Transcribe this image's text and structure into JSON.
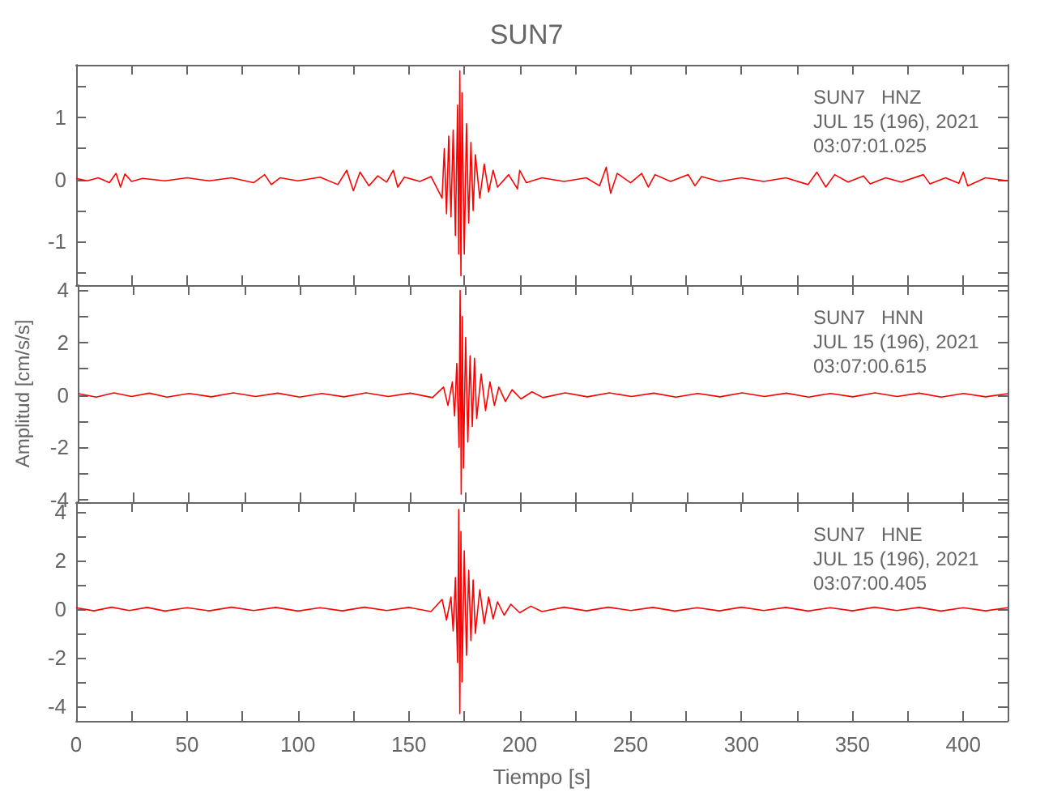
{
  "chart_data": [
    {
      "type": "line",
      "title": "SUN7",
      "annotations": [
        "SUN7   HNZ",
        "JUL 15 (196), 2021",
        "03:07:01.025"
      ],
      "grid": false,
      "tick_labels": "y",
      "xlim": [
        0,
        420
      ],
      "xticks": [
        0,
        {
          "value": 25,
          "label": null
        },
        50,
        {
          "value": 75,
          "label": null
        },
        100,
        {
          "value": 125,
          "label": null
        },
        150,
        {
          "value": 175,
          "label": null
        },
        200,
        {
          "value": 225,
          "label": null
        },
        250,
        {
          "value": 275,
          "label": null
        },
        300,
        {
          "value": 325,
          "label": null
        },
        350,
        {
          "value": 375,
          "label": null
        },
        400
      ],
      "ylim": [
        -1.7,
        1.85
      ],
      "yticks": [
        {
          "value": -1.5,
          "label": null
        },
        -1,
        {
          "value": -0.5,
          "label": null
        },
        0,
        {
          "value": 0.5,
          "label": null
        },
        1,
        {
          "value": 1.5,
          "label": null
        }
      ],
      "series": [
        {
          "color": "#ff0000",
          "x": [
            0,
            5,
            10,
            15,
            18,
            20,
            22,
            25,
            30,
            40,
            50,
            60,
            70,
            80,
            85,
            88,
            92,
            100,
            110,
            118,
            122,
            125,
            128,
            132,
            136,
            140,
            143,
            145,
            148,
            155,
            160,
            165,
            166,
            167,
            168,
            169,
            170,
            171,
            172,
            172.5,
            173,
            173.5,
            174,
            175,
            176,
            177,
            178,
            179,
            180,
            182,
            184,
            186,
            188,
            190,
            195,
            199,
            200,
            203,
            210,
            220,
            230,
            236,
            239,
            241,
            244,
            250,
            255,
            258,
            261,
            268,
            276,
            279,
            282,
            290,
            300,
            310,
            320,
            330,
            334,
            338,
            342,
            348,
            355,
            358,
            365,
            372,
            382,
            385,
            392,
            398,
            400,
            402,
            410,
            420
          ],
          "values": [
            0.02,
            -0.02,
            0.03,
            -0.05,
            0.1,
            -0.12,
            0.09,
            -0.03,
            0.02,
            -0.02,
            0.03,
            -0.02,
            0.03,
            -0.05,
            0.08,
            -0.08,
            0.03,
            -0.02,
            0.04,
            -0.08,
            0.15,
            -0.18,
            0.12,
            -0.1,
            0.06,
            -0.04,
            0.15,
            -0.12,
            0.04,
            -0.03,
            0.05,
            -0.3,
            0.5,
            -0.55,
            0.7,
            -0.6,
            0.8,
            -0.9,
            1.2,
            -1.2,
            1.75,
            -1.55,
            1.4,
            -1.2,
            0.9,
            -0.7,
            0.6,
            -0.5,
            0.4,
            -0.3,
            0.25,
            -0.2,
            0.15,
            -0.12,
            0.08,
            -0.15,
            0.15,
            -0.05,
            0.03,
            -0.03,
            0.03,
            -0.1,
            0.2,
            -0.22,
            0.1,
            -0.05,
            0.1,
            -0.12,
            0.08,
            -0.03,
            0.08,
            -0.1,
            0.05,
            -0.03,
            0.03,
            -0.03,
            0.03,
            -0.08,
            0.12,
            -0.12,
            0.08,
            -0.04,
            0.06,
            -0.07,
            0.03,
            -0.04,
            0.08,
            -0.07,
            0.03,
            -0.06,
            0.12,
            -0.1,
            0.03,
            -0.02
          ]
        }
      ]
    },
    {
      "type": "line",
      "ylabel": "Amplitud [cm/s/s]",
      "annotations": [
        "SUN7   HNN",
        "JUL 15 (196), 2021",
        "03:07:00.615"
      ],
      "grid": false,
      "tick_labels": "y",
      "xlim": [
        0,
        420
      ],
      "xticks": [
        0,
        {
          "value": 25,
          "label": null
        },
        50,
        {
          "value": 75,
          "label": null
        },
        100,
        {
          "value": 125,
          "label": null
        },
        150,
        {
          "value": 175,
          "label": null
        },
        200,
        {
          "value": 225,
          "label": null
        },
        250,
        {
          "value": 275,
          "label": null
        },
        300,
        {
          "value": 325,
          "label": null
        },
        350,
        {
          "value": 375,
          "label": null
        },
        400
      ],
      "ylim": [
        -4.1,
        4.2
      ],
      "yticks": [
        -4,
        {
          "value": -3,
          "label": null
        },
        -2,
        {
          "value": -1,
          "label": null
        },
        0,
        {
          "value": 1,
          "label": null
        },
        2,
        {
          "value": 3,
          "label": null
        },
        4
      ],
      "series": [
        {
          "color": "#ff0000",
          "x": [
            0,
            8,
            16,
            24,
            32,
            40,
            50,
            60,
            70,
            80,
            90,
            100,
            110,
            120,
            130,
            140,
            150,
            160,
            165,
            167,
            169,
            170,
            171,
            172,
            172.5,
            173,
            173.5,
            174,
            175,
            176,
            177,
            178,
            179,
            180,
            182,
            184,
            186,
            188,
            190,
            193,
            196,
            200,
            205,
            210,
            220,
            230,
            240,
            250,
            260,
            270,
            280,
            290,
            300,
            310,
            320,
            330,
            340,
            350,
            360,
            370,
            380,
            390,
            400,
            410,
            420
          ],
          "values": [
            0.05,
            -0.08,
            0.08,
            -0.06,
            0.07,
            -0.08,
            0.06,
            -0.07,
            0.08,
            -0.06,
            0.07,
            -0.08,
            0.06,
            -0.07,
            0.08,
            -0.06,
            0.07,
            -0.1,
            0.3,
            -0.4,
            0.5,
            -0.8,
            1.2,
            -2,
            4,
            -3.8,
            3,
            -2.8,
            2.2,
            -1.8,
            1.5,
            -1.2,
            1.4,
            -0.9,
            0.8,
            -0.6,
            0.5,
            -0.4,
            0.3,
            -0.25,
            0.2,
            -0.15,
            0.12,
            -0.1,
            0.08,
            -0.07,
            0.08,
            -0.06,
            0.07,
            -0.08,
            0.06,
            -0.07,
            0.08,
            -0.06,
            0.07,
            -0.08,
            0.06,
            -0.07,
            0.08,
            -0.06,
            0.07,
            -0.08,
            0.06,
            -0.07,
            0.05
          ]
        }
      ]
    },
    {
      "type": "line",
      "xlabel": "Tiempo [s]",
      "annotations": [
        "SUN7   HNE",
        "JUL 15 (196), 2021",
        "03:07:00.405"
      ],
      "grid": false,
      "xlim": [
        0,
        420
      ],
      "xticks": [
        0,
        {
          "value": 25,
          "label": null
        },
        50,
        {
          "value": 75,
          "label": null
        },
        100,
        {
          "value": 125,
          "label": null
        },
        150,
        {
          "value": 175,
          "label": null
        },
        200,
        {
          "value": 225,
          "label": null
        },
        250,
        {
          "value": 275,
          "label": null
        },
        300,
        {
          "value": 325,
          "label": null
        },
        350,
        {
          "value": 375,
          "label": null
        },
        400
      ],
      "ylim": [
        -4.6,
        4.4
      ],
      "yticks": [
        -4,
        {
          "value": -3,
          "label": null
        },
        -2,
        {
          "value": -1,
          "label": null
        },
        0,
        {
          "value": 1,
          "label": null
        },
        2,
        {
          "value": 3,
          "label": null
        },
        4
      ],
      "series": [
        {
          "color": "#ff0000",
          "x": [
            0,
            8,
            16,
            24,
            32,
            40,
            50,
            60,
            70,
            80,
            90,
            100,
            110,
            120,
            130,
            140,
            150,
            160,
            165,
            167,
            169,
            170,
            171,
            172,
            172.5,
            173,
            173.5,
            174,
            175,
            176,
            177,
            178,
            179,
            180,
            182,
            184,
            186,
            188,
            190,
            193,
            196,
            200,
            205,
            210,
            220,
            230,
            240,
            250,
            260,
            270,
            280,
            290,
            300,
            310,
            320,
            330,
            340,
            350,
            360,
            370,
            380,
            390,
            400,
            410,
            420
          ],
          "values": [
            0.06,
            -0.07,
            0.08,
            -0.06,
            0.07,
            -0.08,
            0.06,
            -0.07,
            0.08,
            -0.06,
            0.07,
            -0.08,
            0.06,
            -0.07,
            0.08,
            -0.06,
            0.07,
            -0.1,
            0.4,
            -0.45,
            0.5,
            -0.9,
            1.3,
            -2.2,
            4.1,
            -4.3,
            3.2,
            -3,
            2.4,
            -1.9,
            1.6,
            -1.3,
            1.2,
            -1,
            0.8,
            -0.6,
            0.5,
            -0.4,
            0.3,
            -0.25,
            0.2,
            -0.15,
            0.12,
            -0.1,
            0.08,
            -0.07,
            0.08,
            -0.06,
            0.07,
            -0.08,
            0.06,
            -0.07,
            0.08,
            -0.06,
            0.07,
            -0.08,
            0.06,
            -0.07,
            0.08,
            -0.06,
            0.07,
            -0.08,
            0.06,
            -0.07,
            0.06
          ]
        }
      ]
    }
  ]
}
